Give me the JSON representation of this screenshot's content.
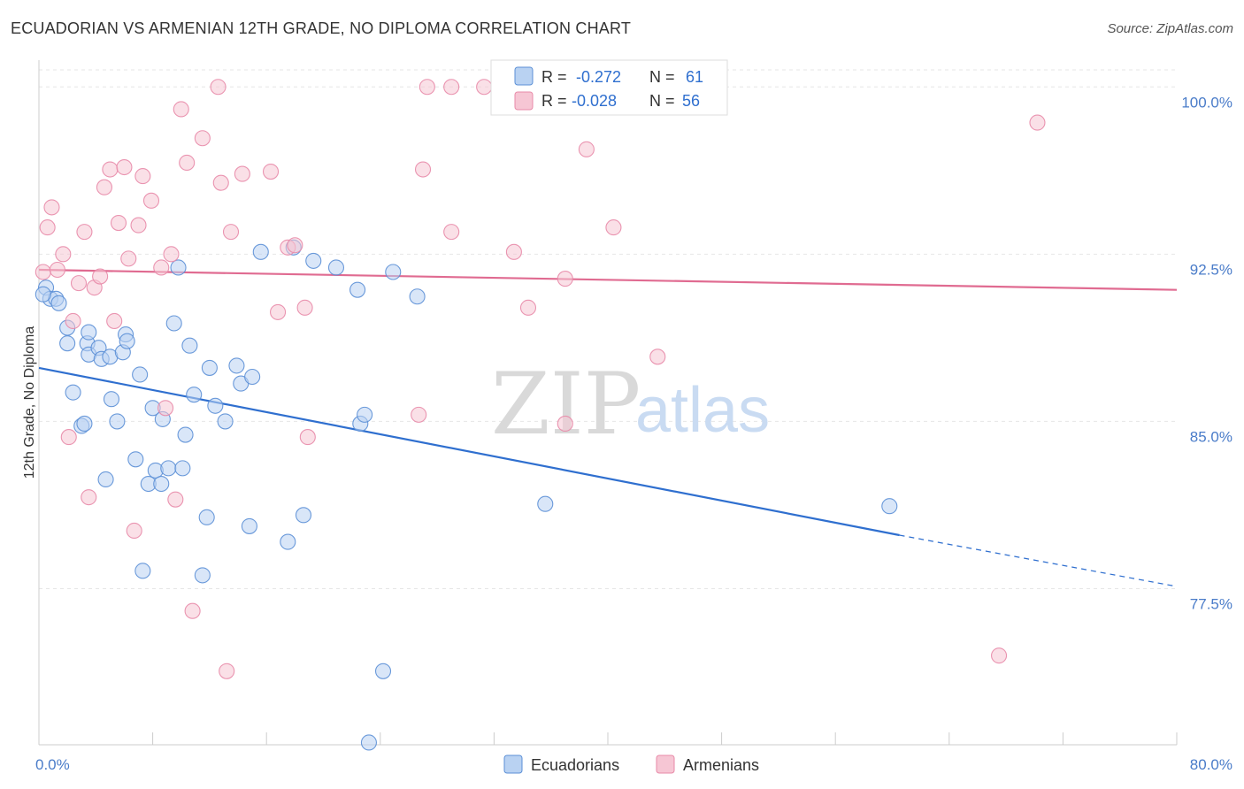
{
  "title": "ECUADORIAN VS ARMENIAN 12TH GRADE, NO DIPLOMA CORRELATION CHART",
  "source": "Source: ZipAtlas.com",
  "colors": {
    "blue": "#5b8fd6",
    "blue_fill": "#b9d2f2",
    "blue_line": "#2f6fcf",
    "pink": "#e88aa8",
    "pink_fill": "#f6c6d4",
    "pink_line": "#e06b91",
    "grid": "#e6e6e6",
    "tick_label": "#4a7cc9"
  },
  "legend": {
    "rows": [
      {
        "series": "Ecuadorians",
        "r_label": "R =",
        "r_value": "-0.272",
        "n_label": "N =",
        "n_value": "61"
      },
      {
        "series": "Armenians",
        "r_label": "R =",
        "r_value": "-0.028",
        "n_label": "N =",
        "n_value": "56"
      }
    ]
  },
  "bottom_legend": [
    "Ecuadorians",
    "Armenians"
  ],
  "watermark": {
    "zip": "ZIP",
    "atlas": "atlas"
  },
  "chart_data": {
    "type": "scatter",
    "title": "ECUADORIAN VS ARMENIAN 12TH GRADE, NO DIPLOMA CORRELATION CHART",
    "xlabel": "",
    "ylabel": "12th Grade, No Diploma",
    "xlim": [
      0,
      80
    ],
    "ylim": [
      70.5,
      101.2
    ],
    "x_tick_labels": [
      {
        "value": 0,
        "label": "0.0%"
      },
      {
        "value": 80,
        "label": "80.0%"
      }
    ],
    "y_tick_labels": [
      {
        "value": 100,
        "label": "100.0%"
      },
      {
        "value": 92.5,
        "label": "92.5%"
      },
      {
        "value": 85,
        "label": "85.0%"
      },
      {
        "value": 77.5,
        "label": "77.5%"
      }
    ],
    "x_minor_ticks": [
      0,
      8,
      16,
      24,
      32,
      40,
      48,
      56,
      64,
      72,
      80
    ],
    "grid": true,
    "legend_position": "top-center",
    "series": [
      {
        "name": "Ecuadorians",
        "color": "#5b8fd6",
        "trend": {
          "x0": 0,
          "y0": 87.4,
          "x1": 60.5,
          "y1": 79.9,
          "dash_to_x": 80,
          "dash_to_y": 77.6
        },
        "points": [
          [
            0.5,
            91.0
          ],
          [
            0.8,
            90.5
          ],
          [
            1.2,
            90.5
          ],
          [
            1.4,
            90.3
          ],
          [
            2.0,
            88.5
          ],
          [
            2.0,
            89.2
          ],
          [
            2.4,
            86.3
          ],
          [
            3.4,
            88.5
          ],
          [
            3.0,
            84.8
          ],
          [
            3.2,
            84.9
          ],
          [
            3.5,
            89.0
          ],
          [
            3.5,
            88.0
          ],
          [
            4.2,
            88.3
          ],
          [
            4.4,
            87.8
          ],
          [
            4.7,
            82.4
          ],
          [
            5.0,
            87.9
          ],
          [
            5.1,
            86.0
          ],
          [
            5.5,
            85.0
          ],
          [
            5.9,
            88.1
          ],
          [
            6.1,
            88.9
          ],
          [
            6.2,
            88.6
          ],
          [
            6.8,
            83.3
          ],
          [
            7.1,
            87.1
          ],
          [
            7.3,
            78.3
          ],
          [
            7.7,
            82.2
          ],
          [
            8.0,
            85.6
          ],
          [
            8.2,
            82.8
          ],
          [
            8.6,
            82.2
          ],
          [
            8.7,
            85.1
          ],
          [
            9.1,
            82.9
          ],
          [
            9.5,
            89.4
          ],
          [
            9.8,
            91.9
          ],
          [
            10.1,
            82.9
          ],
          [
            10.3,
            84.4
          ],
          [
            10.6,
            88.4
          ],
          [
            10.9,
            86.2
          ],
          [
            11.5,
            78.1
          ],
          [
            11.8,
            80.7
          ],
          [
            12.0,
            87.4
          ],
          [
            12.4,
            85.7
          ],
          [
            13.1,
            85.0
          ],
          [
            13.9,
            87.5
          ],
          [
            14.2,
            86.7
          ],
          [
            15.0,
            87.0
          ],
          [
            14.8,
            80.3
          ],
          [
            15.6,
            92.6
          ],
          [
            17.5,
            79.6
          ],
          [
            17.9,
            92.8
          ],
          [
            18.6,
            80.8
          ],
          [
            19.3,
            92.2
          ],
          [
            20.9,
            91.9
          ],
          [
            22.4,
            90.9
          ],
          [
            22.6,
            84.9
          ],
          [
            22.9,
            85.3
          ],
          [
            24.2,
            73.8
          ],
          [
            24.9,
            91.7
          ],
          [
            26.6,
            90.6
          ],
          [
            23.2,
            70.6
          ],
          [
            35.6,
            81.3
          ],
          [
            59.8,
            81.2
          ],
          [
            0.3,
            90.7
          ]
        ]
      },
      {
        "name": "Armenians",
        "color": "#e88aa8",
        "trend": {
          "x0": 0,
          "y0": 91.8,
          "x1": 80,
          "y1": 90.9
        },
        "points": [
          [
            0.3,
            91.7
          ],
          [
            0.6,
            93.7
          ],
          [
            0.9,
            94.6
          ],
          [
            1.3,
            91.8
          ],
          [
            1.7,
            92.5
          ],
          [
            2.1,
            84.3
          ],
          [
            2.4,
            89.5
          ],
          [
            2.8,
            91.2
          ],
          [
            3.2,
            93.5
          ],
          [
            3.5,
            81.6
          ],
          [
            3.9,
            91.0
          ],
          [
            4.3,
            91.5
          ],
          [
            4.6,
            95.5
          ],
          [
            5.0,
            96.3
          ],
          [
            5.3,
            89.5
          ],
          [
            5.6,
            93.9
          ],
          [
            6.0,
            96.4
          ],
          [
            6.3,
            92.3
          ],
          [
            6.7,
            80.1
          ],
          [
            7.0,
            93.8
          ],
          [
            7.3,
            96.0
          ],
          [
            7.9,
            94.9
          ],
          [
            8.6,
            91.9
          ],
          [
            8.9,
            85.6
          ],
          [
            9.3,
            92.5
          ],
          [
            9.6,
            81.5
          ],
          [
            10.0,
            99.0
          ],
          [
            10.4,
            96.6
          ],
          [
            10.8,
            76.5
          ],
          [
            11.5,
            97.7
          ],
          [
            12.8,
            95.7
          ],
          [
            12.6,
            100.0
          ],
          [
            13.2,
            73.8
          ],
          [
            13.5,
            93.5
          ],
          [
            14.3,
            96.1
          ],
          [
            16.3,
            96.2
          ],
          [
            16.8,
            89.9
          ],
          [
            17.5,
            92.8
          ],
          [
            18.0,
            92.9
          ],
          [
            18.7,
            90.1
          ],
          [
            18.9,
            84.3
          ],
          [
            26.7,
            85.3
          ],
          [
            27.0,
            96.3
          ],
          [
            27.3,
            100.0
          ],
          [
            29.0,
            93.5
          ],
          [
            29.0,
            100.0
          ],
          [
            31.3,
            100.0
          ],
          [
            33.4,
            92.6
          ],
          [
            34.4,
            90.1
          ],
          [
            37.0,
            91.4
          ],
          [
            37.0,
            84.9
          ],
          [
            38.5,
            97.2
          ],
          [
            40.4,
            93.7
          ],
          [
            43.5,
            87.9
          ],
          [
            67.5,
            74.5
          ],
          [
            70.2,
            98.4
          ]
        ]
      }
    ]
  }
}
